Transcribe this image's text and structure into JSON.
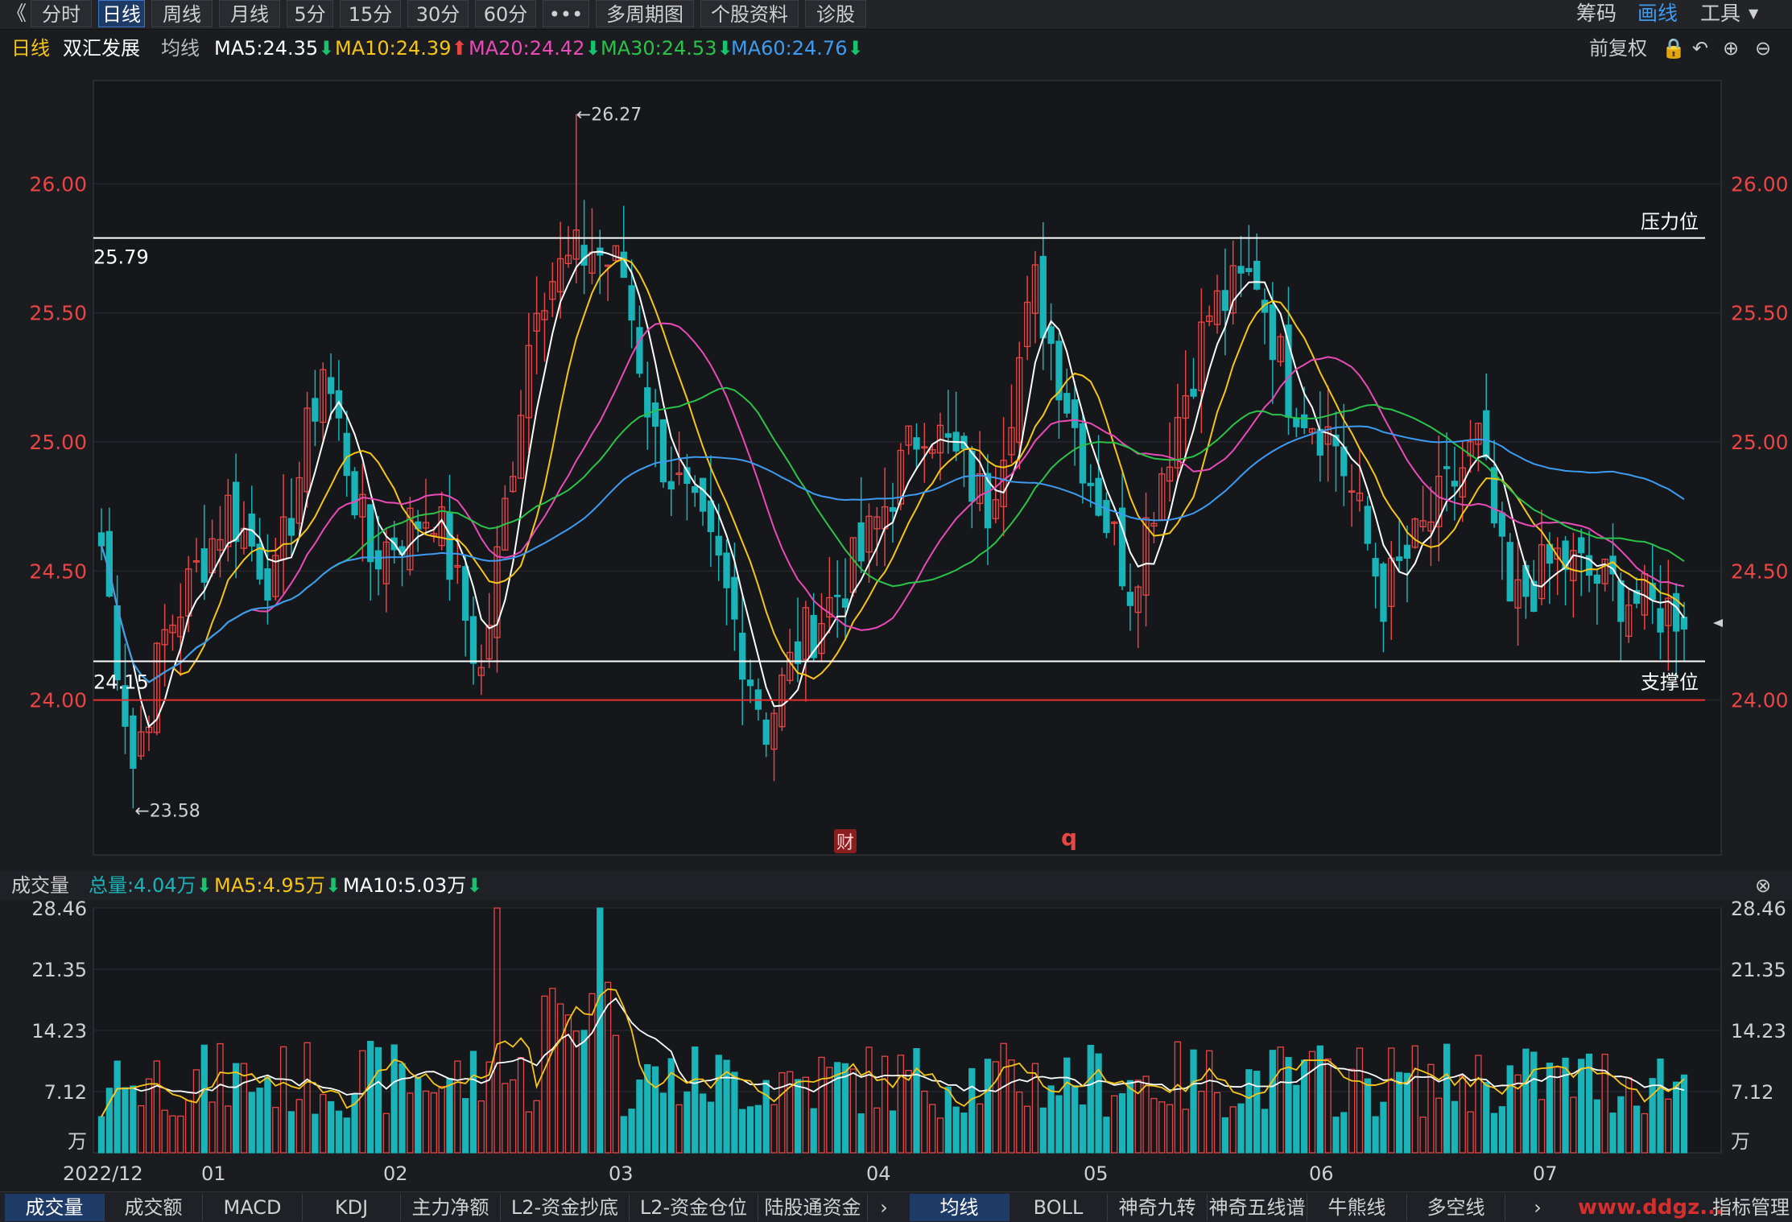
{
  "toolbar": {
    "back_glyph": "《",
    "tabs": [
      {
        "label": "分时",
        "active": false
      },
      {
        "label": "日线",
        "active": true
      },
      {
        "label": "周线",
        "active": false
      },
      {
        "label": "月线",
        "active": false
      },
      {
        "label": "5分",
        "active": false
      },
      {
        "label": "15分",
        "active": false
      },
      {
        "label": "30分",
        "active": false
      },
      {
        "label": "60分",
        "active": false
      },
      {
        "label": "•••",
        "active": false
      },
      {
        "label": "多周期图",
        "active": false
      },
      {
        "label": "个股资料",
        "active": false
      },
      {
        "label": "诊股",
        "active": false
      }
    ],
    "right": {
      "chips": "筹码",
      "draw": "画线",
      "tools": "工具"
    }
  },
  "legend": {
    "period": "日线",
    "stock_name": "双汇发展",
    "ma_label": "均线",
    "ma5": "MA5:24.35",
    "ma10": "MA10:24.39",
    "ma20": "MA20:24.42",
    "ma30": "MA30:24.53",
    "ma60": "MA60:24.76",
    "adjust": "前复权",
    "colors": {
      "ma5": "#ffffff",
      "ma10": "#f5c518",
      "ma20": "#e84bb5",
      "ma30": "#2bc24a",
      "ma60": "#3d9bf0",
      "up": "#e84545",
      "down": "#19b3b8"
    }
  },
  "volume_header": {
    "title": "成交量",
    "total": "总量:4.04万",
    "ma5": "MA5:4.95万",
    "ma10": "MA10:5.03万"
  },
  "bottom_tabs_left": [
    "成交量",
    "成交额",
    "MACD",
    "KDJ",
    "主力净额",
    "L2-资金抄底",
    "L2-资金仓位",
    "陆股通资金"
  ],
  "bottom_tabs_right": [
    "均线",
    "BOLL",
    "神奇九转",
    "神奇五线谱",
    "牛熊线",
    "多空线"
  ],
  "bottom_right": "指标管理",
  "watermark": "www.ddgz...",
  "chart_data": {
    "type": "candlestick",
    "price_axis": {
      "ticks": [
        "26.00",
        "25.50",
        "25.00",
        "24.50",
        "24.00"
      ],
      "ylim": [
        23.4,
        26.4
      ]
    },
    "volume_axis": {
      "ticks": [
        "28.46",
        "21.35",
        "14.23",
        "7.12"
      ],
      "unit": "万",
      "ylim": [
        0,
        28.46
      ]
    },
    "x_labels": [
      "2022/12",
      "01",
      "02",
      "03",
      "04",
      "05",
      "06",
      "07"
    ],
    "annotations": {
      "high": "←26.27",
      "low": "←23.58",
      "resistance_value": "25.79",
      "resistance_label": "压力位",
      "support_value": "24.15",
      "support_label": "支撑位",
      "event_badge": "财",
      "event_mark": "q"
    },
    "lines": {
      "resistance": 25.79,
      "support": 24.15,
      "level": 24.0
    },
    "candles": [],
    "ma_series_names": [
      "MA5",
      "MA10",
      "MA20",
      "MA30",
      "MA60"
    ]
  }
}
